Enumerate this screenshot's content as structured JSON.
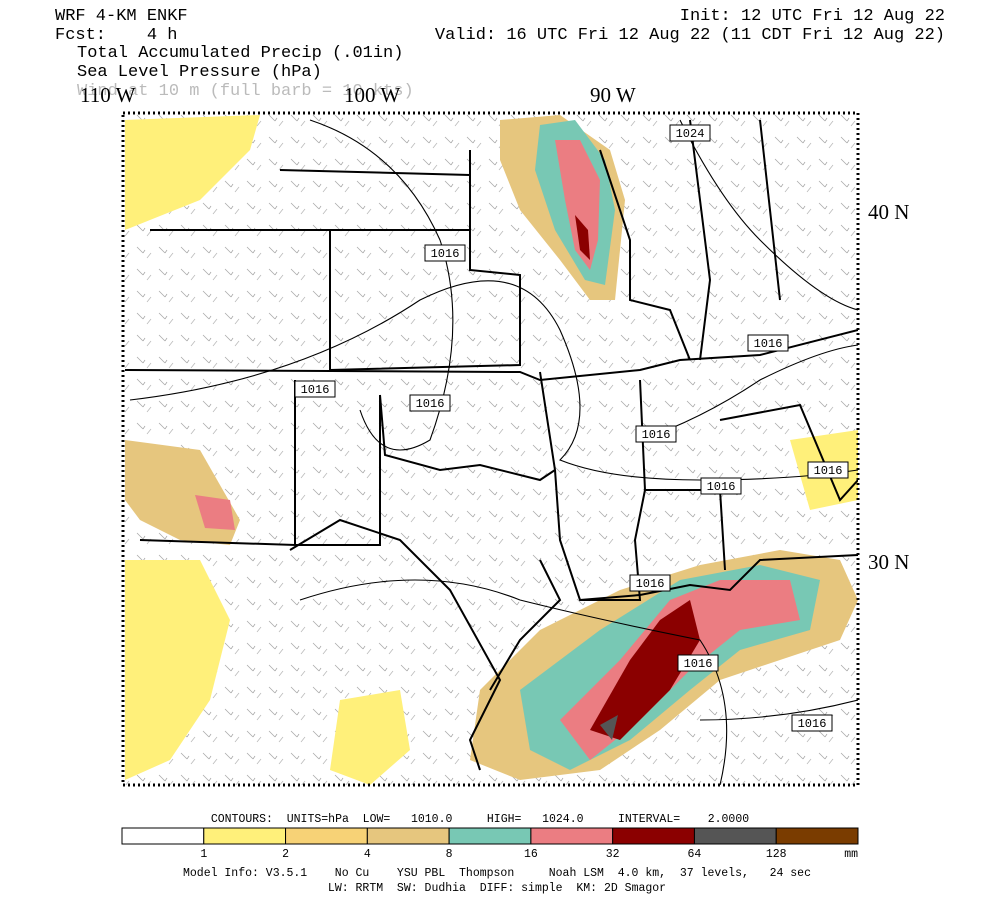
{
  "header": {
    "model": "WRF 4-KM ENKF",
    "forecast": "Fcst:    4 h",
    "init": "Init: 12 UTC Fri 12 Aug 22",
    "valid": "Valid: 16 UTC Fri 12 Aug 22 (11 CDT Fri 12 Aug 22)",
    "fields": [
      "Total Accumulated Precip (.01in)",
      "Sea Level Pressure (hPa)",
      "Wind at 10 m (full barb = 10 kts)"
    ]
  },
  "map": {
    "longitude_labels": [
      "110 W",
      "100 W",
      "90 W"
    ],
    "latitude_labels": [
      "40 N",
      "30 N"
    ],
    "contour_labels": [
      "1024",
      "1016",
      "1016",
      "1016",
      "1016",
      "1016",
      "1016",
      "1016",
      "1016",
      "1016",
      "1016"
    ]
  },
  "colorbar": {
    "colors": [
      "#ffffff",
      "#fff07a",
      "#f7d276",
      "#e6c67e",
      "#78c8b4",
      "#eb7d82",
      "#8b0000",
      "#555555",
      "#7a3c00"
    ],
    "ticks": [
      "1",
      "2",
      "4",
      "8",
      "16",
      "32",
      "64",
      "128"
    ],
    "unit": "mm"
  },
  "footer": {
    "contours": "CONTOURS:  UNITS=hPa  LOW=   1010.0     HIGH=   1024.0     INTERVAL=    2.0000",
    "model_info": [
      "Model Info: V3.5.1    No Cu    YSU PBL  Thompson     Noah LSM  4.0 km,  37 levels,   24 sec",
      "LW: RRTM  SW: Dudhia  DIFF: simple  KM: 2D Smagor"
    ]
  }
}
